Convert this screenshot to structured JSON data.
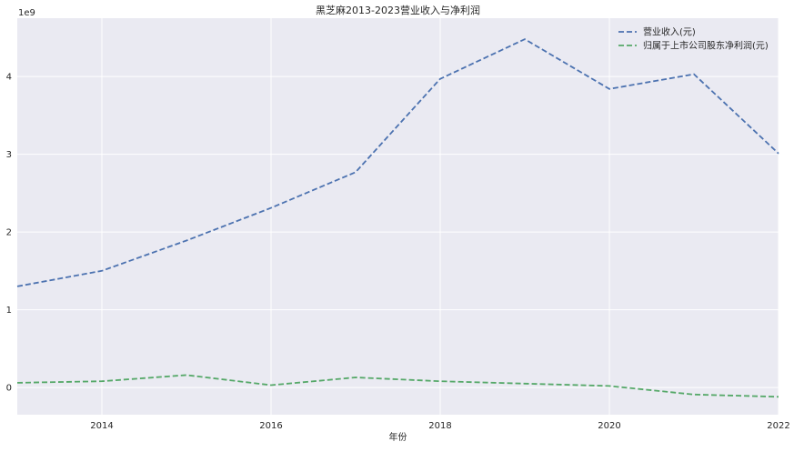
{
  "chart_data": {
    "type": "line",
    "title": "黑芝麻2013-2023营业收入与净利润",
    "xlabel": "年份",
    "ylabel": "",
    "y_offset_label": "1e9",
    "x": [
      2013,
      2014,
      2015,
      2016,
      2017,
      2018,
      2019,
      2020,
      2021,
      2022
    ],
    "xlim": [
      2013,
      2022
    ],
    "ylim": [
      -0.35,
      4.75
    ],
    "x_ticks": [
      2014,
      2016,
      2018,
      2020,
      2022
    ],
    "y_ticks": [
      0,
      1,
      2,
      3,
      4
    ],
    "grid": true,
    "legend_position": "top-right",
    "series": [
      {
        "name": "营业收入(元)",
        "color": "#4c72b0",
        "line_style": "dashed",
        "values": [
          1.3,
          1.5,
          1.89,
          2.31,
          2.77,
          3.97,
          4.48,
          3.84,
          4.03,
          3.01
        ]
      },
      {
        "name": "归属于上市公司股东净利润(元)",
        "color": "#55a868",
        "line_style": "dashed",
        "values": [
          0.06,
          0.08,
          0.16,
          0.03,
          0.13,
          0.08,
          0.05,
          0.02,
          -0.09,
          -0.12
        ]
      }
    ]
  },
  "colors": {
    "plot_background": "#eaeaf2",
    "grid": "#ffffff",
    "text": "#262626"
  }
}
